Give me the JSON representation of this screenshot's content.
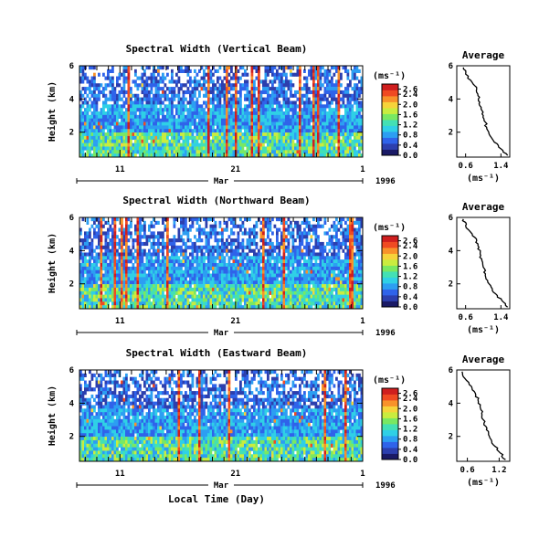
{
  "colors": {
    "background": "#ffffff",
    "axis": "#000000",
    "colorscale": [
      "#1a1a66",
      "#2c3fae",
      "#2f63ea",
      "#2c9ef2",
      "#2fd0e6",
      "#43e0b4",
      "#79e862",
      "#c9ec3f",
      "#f6d33a",
      "#f8922a",
      "#f04a22",
      "#cf1e1e"
    ]
  },
  "shared": {
    "xaxis_label": "Local Time (Day)",
    "month_label": "Mar",
    "year_label": "1996",
    "unit_label": "(ms⁻¹)"
  },
  "chart_data": [
    {
      "type": "heatmap",
      "title": "Spectral Width (Vertical Beam)",
      "ylabel": "Height (km)",
      "xlabel": "Local Time (Day)",
      "x_tick_labels": [
        "11",
        "21",
        "1"
      ],
      "y_tick_labels": [
        "6",
        "4",
        "2"
      ],
      "ylim": [
        0.5,
        6
      ],
      "colorbar": {
        "label": "(ms⁻¹)",
        "ticks": [
          "2.6",
          "2.4",
          "2.0",
          "1.6",
          "1.2",
          "0.8",
          "0.4",
          "0.0"
        ],
        "range": [
          0,
          2.8
        ]
      },
      "profile": {
        "title": "Average",
        "xlabel": "(ms⁻¹)",
        "x_tick_labels": [
          "0.6",
          "1.4"
        ],
        "xlim": [
          0.4,
          1.6
        ],
        "y_tick_labels": [
          "6",
          "4",
          "2"
        ],
        "ylim": [
          0.5,
          6
        ],
        "heights": [
          5.9,
          5.5,
          5.0,
          4.6,
          4.2,
          3.8,
          3.4,
          3.0,
          2.6,
          2.2,
          1.8,
          1.4,
          1.0,
          0.6
        ],
        "values": [
          0.55,
          0.6,
          0.75,
          0.85,
          0.88,
          0.92,
          0.95,
          1.0,
          1.05,
          1.08,
          1.15,
          1.25,
          1.4,
          1.55
        ]
      }
    },
    {
      "type": "heatmap",
      "title": "Spectral Width (Northward Beam)",
      "ylabel": "Height (km)",
      "xlabel": "Local Time (Day)",
      "x_tick_labels": [
        "11",
        "21",
        "1"
      ],
      "y_tick_labels": [
        "6",
        "4",
        "2"
      ],
      "ylim": [
        0.5,
        6
      ],
      "colorbar": {
        "label": "(ms⁻¹)",
        "ticks": [
          "2.6",
          "2.4",
          "2.0",
          "1.6",
          "1.2",
          "0.8",
          "0.4",
          "0.0"
        ],
        "range": [
          0,
          2.8
        ]
      },
      "profile": {
        "title": "Average",
        "xlabel": "(ms⁻¹)",
        "x_tick_labels": [
          "0.6",
          "1.4"
        ],
        "xlim": [
          0.4,
          1.6
        ],
        "y_tick_labels": [
          "6",
          "4",
          "2"
        ],
        "ylim": [
          0.5,
          6
        ],
        "heights": [
          5.9,
          5.5,
          5.0,
          4.6,
          4.2,
          3.8,
          3.4,
          3.0,
          2.6,
          2.2,
          1.8,
          1.4,
          1.0,
          0.6
        ],
        "values": [
          0.55,
          0.6,
          0.75,
          0.85,
          0.9,
          0.93,
          0.97,
          1.0,
          1.05,
          1.1,
          1.18,
          1.28,
          1.42,
          1.55
        ]
      }
    },
    {
      "type": "heatmap",
      "title": "Spectral Width (Eastward Beam)",
      "ylabel": "Height (km)",
      "xlabel": "Local Time (Day)",
      "x_tick_labels": [
        "11",
        "21",
        "1"
      ],
      "y_tick_labels": [
        "6",
        "4",
        "2"
      ],
      "ylim": [
        0.5,
        6
      ],
      "colorbar": {
        "label": "(ms⁻¹)",
        "ticks": [
          "2.6",
          "2.4",
          "2.0",
          "1.6",
          "1.2",
          "0.8",
          "0.4",
          "0.0"
        ],
        "range": [
          0,
          2.8
        ]
      },
      "profile": {
        "title": "Average",
        "xlabel": "(ms⁻¹)",
        "x_tick_labels": [
          "0.6",
          "1.2"
        ],
        "xlim": [
          0.4,
          1.4
        ],
        "y_tick_labels": [
          "6",
          "4",
          "2"
        ],
        "ylim": [
          0.5,
          6
        ],
        "heights": [
          5.9,
          5.5,
          5.0,
          4.6,
          4.2,
          3.8,
          3.4,
          3.0,
          2.6,
          2.2,
          1.8,
          1.4,
          1.0,
          0.6
        ],
        "values": [
          0.5,
          0.55,
          0.68,
          0.75,
          0.8,
          0.84,
          0.87,
          0.9,
          0.95,
          1.0,
          1.05,
          1.12,
          1.22,
          1.32
        ]
      }
    }
  ]
}
